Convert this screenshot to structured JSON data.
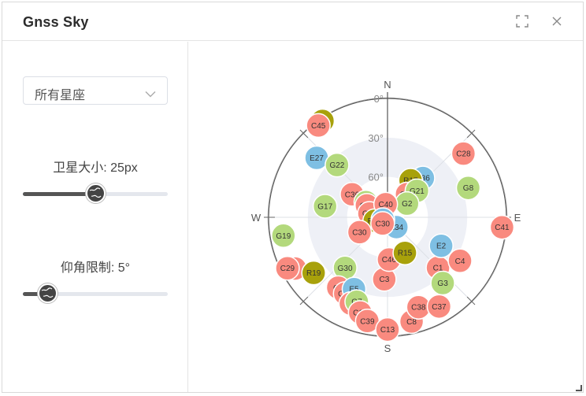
{
  "window": {
    "title": "Gnss Sky"
  },
  "controls": {
    "constellation_select": {
      "value": "所有星座"
    },
    "sat_size": {
      "label": "卫星大小: 25px",
      "level_fraction": 0.5
    },
    "elev_mask": {
      "label": "仰角限制: 5°",
      "level_fraction": 0.17
    }
  },
  "sky": {
    "directions": {
      "north": "N",
      "south": "S",
      "east": "E",
      "west": "W"
    },
    "elevation_labels": [
      "0°",
      "30°",
      "60°"
    ],
    "constellation_colors": {
      "gps": "#b3d97c",
      "bds": "#f98a7f",
      "gal": "#7ebfe3",
      "glo": "#a8a10b"
    },
    "satellites": [
      {
        "id": "R9",
        "sys": "glo",
        "az": 326,
        "el": 2
      },
      {
        "id": "C45",
        "sys": "bds",
        "az": 323,
        "el": 3
      },
      {
        "id": "E27",
        "sys": "gal",
        "az": 310,
        "el": 20
      },
      {
        "id": "G22",
        "sys": "gps",
        "az": 316,
        "el": 35
      },
      {
        "id": "C36",
        "sys": "bds",
        "az": 303,
        "el": 58
      },
      {
        "id": "G14",
        "sys": "gps",
        "az": 305,
        "el": 70
      },
      {
        "id": "C46",
        "sys": "bds",
        "az": 300,
        "el": 72
      },
      {
        "id": "C10",
        "sys": "bds",
        "az": 282,
        "el": 76
      },
      {
        "id": "G17",
        "sys": "gps",
        "az": 280,
        "el": 42
      },
      {
        "id": "R18",
        "sys": "glo",
        "az": 255,
        "el": 80
      },
      {
        "id": "C30",
        "sys": "bds",
        "az": 242,
        "el": 66
      },
      {
        "id": "G19",
        "sys": "gps",
        "az": 260,
        "el": 10
      },
      {
        "id": "C5",
        "sys": "bds",
        "az": 241,
        "el": 10
      },
      {
        "id": "C29",
        "sys": "bds",
        "az": 243,
        "el": 5
      },
      {
        "id": "R19",
        "sys": "glo",
        "az": 233,
        "el": 20
      },
      {
        "id": "G30",
        "sys": "gps",
        "az": 220,
        "el": 40
      },
      {
        "id": "C2",
        "sys": "bds",
        "az": 215,
        "el": 25
      },
      {
        "id": "C59",
        "sys": "bds",
        "az": 209,
        "el": 24
      },
      {
        "id": "E5",
        "sys": "gal",
        "az": 205,
        "el": 30
      },
      {
        "id": "C6",
        "sys": "bds",
        "az": 203,
        "el": 19
      },
      {
        "id": "G7",
        "sys": "gps",
        "az": 200,
        "el": 22
      },
      {
        "id": "C16",
        "sys": "bds",
        "az": 196,
        "el": 15
      },
      {
        "id": "C39",
        "sys": "bds",
        "az": 191,
        "el": 10
      },
      {
        "id": "C13",
        "sys": "bds",
        "az": 180,
        "el": 5
      },
      {
        "id": "C8",
        "sys": "bds",
        "az": 167,
        "el": 9
      },
      {
        "id": "C38",
        "sys": "bds",
        "az": 161,
        "el": 18
      },
      {
        "id": "C37",
        "sys": "bds",
        "az": 150,
        "el": 12
      },
      {
        "id": "C3",
        "sys": "bds",
        "az": 183,
        "el": 43
      },
      {
        "id": "C46",
        "sys": "bds",
        "az": 178,
        "el": 58
      },
      {
        "id": "R15",
        "sys": "glo",
        "az": 154,
        "el": 60
      },
      {
        "id": "C1",
        "sys": "bds",
        "az": 135,
        "el": 36
      },
      {
        "id": "G3",
        "sys": "gps",
        "az": 140,
        "el": 25
      },
      {
        "id": "C4",
        "sys": "bds",
        "az": 121,
        "el": 26
      },
      {
        "id": "E2",
        "sys": "gal",
        "az": 118,
        "el": 44
      },
      {
        "id": "E34",
        "sys": "gal",
        "az": 138,
        "el": 80
      },
      {
        "id": "C41",
        "sys": "bds",
        "az": 95,
        "el": 3
      },
      {
        "id": "G8",
        "sys": "gps",
        "az": 70,
        "el": 25
      },
      {
        "id": "C28",
        "sys": "bds",
        "az": 50,
        "el": 15
      },
      {
        "id": "E36",
        "sys": "gal",
        "az": 42,
        "el": 50
      },
      {
        "id": "R17",
        "sys": "glo",
        "az": 32,
        "el": 57
      },
      {
        "id": "C27",
        "sys": "bds",
        "az": 40,
        "el": 67
      },
      {
        "id": "G21",
        "sys": "gps",
        "az": 48,
        "el": 60
      },
      {
        "id": "G2",
        "sys": "gps",
        "az": 55,
        "el": 72
      },
      {
        "id": "C40",
        "sys": "bds",
        "az": 352,
        "el": 80
      },
      {
        "id": "E30",
        "sys": "gal",
        "az": 242,
        "el": 86
      },
      {
        "id": "C30",
        "sys": "bds",
        "az": 218,
        "el": 84
      }
    ]
  }
}
